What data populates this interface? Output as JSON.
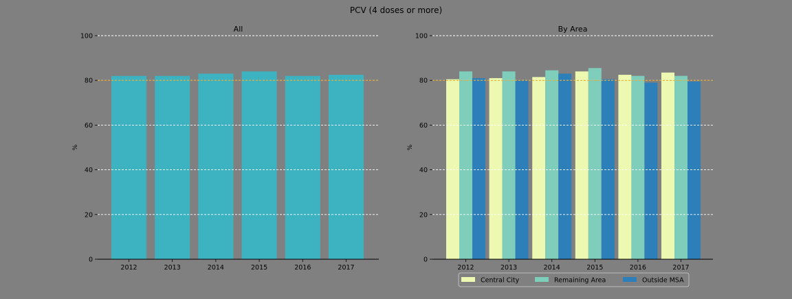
{
  "figure": {
    "title": "PCV (4 doses or more)"
  },
  "colors": {
    "background": "#808080",
    "bar_all": "#3db3c2",
    "grid": "#ffffff",
    "target_line": "#e8a317"
  },
  "chart_data": [
    {
      "type": "bar",
      "title": "All",
      "xlabel": "",
      "ylabel": "%",
      "ylim": [
        0,
        100
      ],
      "yticks": [
        0,
        20,
        40,
        60,
        80,
        100
      ],
      "grid": "y-dashed",
      "reference_line": 80,
      "categories": [
        "2012",
        "2013",
        "2014",
        "2015",
        "2016",
        "2017"
      ],
      "series": [
        {
          "values": [
            82,
            82,
            83,
            84,
            82,
            82.5
          ],
          "color": "#3db3c2"
        }
      ]
    },
    {
      "type": "bar",
      "title": "By Area",
      "xlabel": "",
      "ylabel": "%",
      "ylim": [
        0,
        100
      ],
      "yticks": [
        0,
        20,
        40,
        60,
        80,
        100
      ],
      "grid": "y-dashed",
      "reference_line": 80,
      "legend": "bottom-center",
      "categories": [
        "2012",
        "2013",
        "2014",
        "2015",
        "2016",
        "2017"
      ],
      "series": [
        {
          "name": "Central City",
          "values": [
            80.5,
            81,
            81.5,
            84,
            82.5,
            83.5
          ],
          "color": "#edf8b1"
        },
        {
          "name": "Remaining Area",
          "values": [
            84,
            84,
            84.5,
            85.5,
            82,
            82
          ],
          "color": "#7fcdbb"
        },
        {
          "name": "Outside MSA",
          "values": [
            81,
            80,
            83,
            80.5,
            79,
            79.5
          ],
          "color": "#2c7fb8"
        }
      ]
    }
  ]
}
